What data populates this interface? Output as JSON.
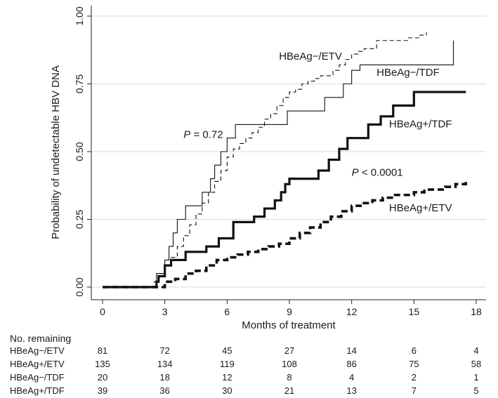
{
  "chart_data": {
    "type": "line",
    "title": "",
    "xlabel": "Months of treatment",
    "ylabel": "Probability of undetectable HBV DNA",
    "xlim": [
      0,
      18
    ],
    "ylim": [
      0,
      1
    ],
    "xticks": [
      "0",
      "3",
      "6",
      "9",
      "12",
      "15",
      "18"
    ],
    "yticks": [
      "0.00",
      "0.25",
      "0.50",
      "0.75",
      "1.00"
    ],
    "grid": true,
    "series": [
      {
        "name": "HBeAg−/ETV",
        "style": "thin-dashed",
        "x": [
          0,
          2.5,
          2.7,
          3.0,
          3.3,
          3.6,
          3.9,
          4.2,
          4.5,
          4.8,
          5.1,
          5.4,
          5.7,
          6.0,
          6.3,
          6.6,
          6.9,
          7.2,
          7.5,
          7.8,
          8.1,
          8.4,
          8.7,
          9.0,
          9.3,
          9.6,
          9.9,
          10.2,
          10.5,
          10.8,
          11.1,
          11.4,
          11.7,
          12.0,
          12.3,
          12.6,
          12.9,
          13.2,
          13.5,
          13.8,
          14.1,
          14.4,
          14.7,
          15.0,
          15.3,
          15.6
        ],
        "y": [
          0,
          0.02,
          0.05,
          0.08,
          0.11,
          0.15,
          0.19,
          0.23,
          0.27,
          0.31,
          0.35,
          0.39,
          0.43,
          0.48,
          0.51,
          0.53,
          0.55,
          0.57,
          0.59,
          0.62,
          0.64,
          0.67,
          0.7,
          0.72,
          0.73,
          0.75,
          0.76,
          0.77,
          0.78,
          0.78,
          0.8,
          0.82,
          0.84,
          0.86,
          0.87,
          0.88,
          0.88,
          0.91,
          0.91,
          0.91,
          0.91,
          0.91,
          0.92,
          0.92,
          0.93,
          0.94
        ]
      },
      {
        "name": "HBeAg−/TDF",
        "style": "thin-solid",
        "x": [
          0,
          2.6,
          3.0,
          3.2,
          3.4,
          3.6,
          4.0,
          4.4,
          4.8,
          5.0,
          5.2,
          5.4,
          5.7,
          6.0,
          6.4,
          6.6,
          7.4,
          8.0,
          8.9,
          9.4,
          10.7,
          11.1,
          11.6,
          11.8,
          12.0,
          12.4,
          13.0,
          14.0,
          15.0,
          16.0,
          16.8,
          16.9
        ],
        "y": [
          0,
          0.05,
          0.1,
          0.15,
          0.2,
          0.25,
          0.3,
          0.3,
          0.35,
          0.35,
          0.4,
          0.45,
          0.5,
          0.55,
          0.6,
          0.6,
          0.6,
          0.6,
          0.65,
          0.65,
          0.7,
          0.7,
          0.75,
          0.75,
          0.8,
          0.82,
          0.82,
          0.82,
          0.82,
          0.82,
          0.82,
          0.91
        ]
      },
      {
        "name": "HBeAg+/TDF",
        "style": "thick-solid",
        "x": [
          0,
          2.6,
          2.7,
          3.0,
          3.3,
          4.0,
          5.0,
          5.6,
          6.3,
          7.0,
          7.3,
          7.8,
          8.3,
          8.6,
          8.8,
          9.0,
          10.4,
          10.9,
          11.4,
          11.8,
          12.3,
          12.8,
          13.4,
          13.6,
          14.0,
          14.7,
          15.0,
          15.2,
          16.0,
          16.5,
          17.0,
          17.5
        ],
        "y": [
          0,
          0.02,
          0.04,
          0.08,
          0.1,
          0.13,
          0.15,
          0.18,
          0.24,
          0.24,
          0.26,
          0.29,
          0.32,
          0.35,
          0.38,
          0.4,
          0.43,
          0.47,
          0.51,
          0.55,
          0.55,
          0.6,
          0.63,
          0.63,
          0.67,
          0.67,
          0.72,
          0.72,
          0.72,
          0.72,
          0.72,
          0.72
        ]
      },
      {
        "name": "HBeAg+/ETV",
        "style": "thick-dashed",
        "x": [
          0,
          2.5,
          3.0,
          3.5,
          4.0,
          4.5,
          5.0,
          5.5,
          6.0,
          6.5,
          7.0,
          7.5,
          8.0,
          8.5,
          9.0,
          9.5,
          10.0,
          10.5,
          11.0,
          11.5,
          12.0,
          12.5,
          13.0,
          13.5,
          14.0,
          14.5,
          15.0,
          15.5,
          16.0,
          16.5,
          17.0,
          17.5
        ],
        "y": [
          0,
          0.0,
          0.02,
          0.03,
          0.05,
          0.06,
          0.08,
          0.1,
          0.11,
          0.12,
          0.13,
          0.14,
          0.15,
          0.16,
          0.18,
          0.2,
          0.22,
          0.24,
          0.26,
          0.28,
          0.3,
          0.31,
          0.32,
          0.33,
          0.34,
          0.34,
          0.35,
          0.36,
          0.36,
          0.37,
          0.38,
          0.39
        ]
      }
    ],
    "annotations": [
      {
        "text_italic": "P",
        "text_rest": " = 0.72",
        "x": 3.9,
        "y": 0.55
      },
      {
        "text_italic": "P",
        "text_rest": " < 0.0001",
        "x": 12.0,
        "y": 0.41
      }
    ],
    "series_labels": [
      {
        "text": "HBeAg−/ETV",
        "x": 8.5,
        "y": 0.84
      },
      {
        "text": "HBeAg−/TDF",
        "x": 13.2,
        "y": 0.78
      },
      {
        "text": "HBeAg+/TDF",
        "x": 13.8,
        "y": 0.59
      },
      {
        "text": "HBeAg+/ETV",
        "x": 13.8,
        "y": 0.28
      }
    ]
  },
  "risk_table": {
    "title": "No. remaining",
    "rows": [
      {
        "label": "HBeAg−/ETV",
        "values": [
          "81",
          "72",
          "45",
          "27",
          "14",
          "6",
          "4"
        ]
      },
      {
        "label": "HBeAg+/ETV",
        "values": [
          "135",
          "134",
          "119",
          "108",
          "86",
          "75",
          "58"
        ]
      },
      {
        "label": "HBeAg−/TDF",
        "values": [
          "20",
          "18",
          "12",
          "8",
          "4",
          "2",
          "1"
        ]
      },
      {
        "label": "HBeAg+/TDF",
        "values": [
          "39",
          "36",
          "30",
          "21",
          "13",
          "7",
          "5"
        ]
      }
    ]
  }
}
